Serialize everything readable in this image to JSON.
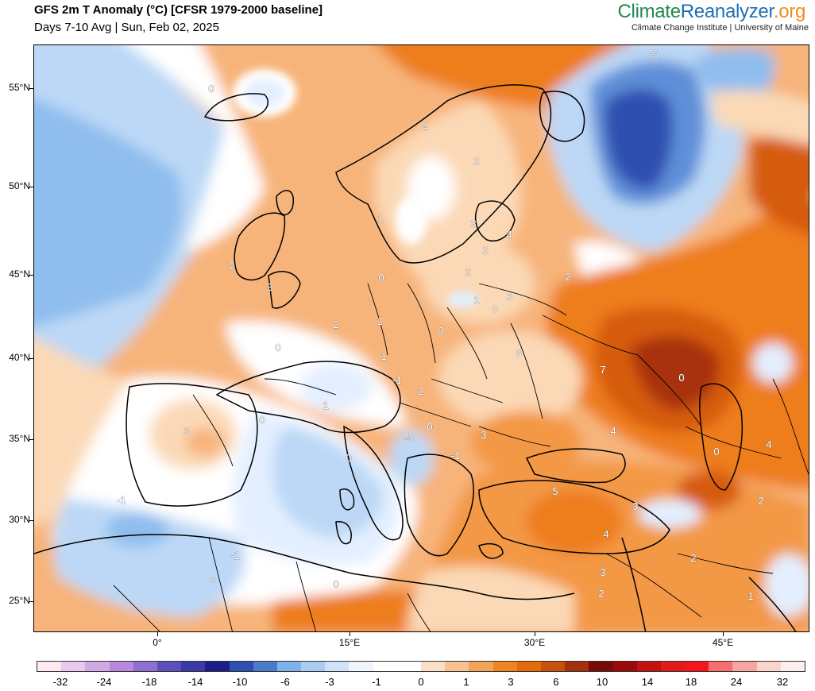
{
  "header": {
    "title": "GFS 2m T Anomaly (°C) [CFSR 1979-2000 baseline]",
    "subtitle": "Days 7-10 Avg | Sun, Feb 02, 2025",
    "brand_part1": "Climate",
    "brand_part2": "Reanalyzer",
    "brand_part3": ".org",
    "brand_sub": "Climate Change Institute | University of Maine"
  },
  "axes": {
    "lat_labels": [
      "55°N",
      "50°N",
      "45°N",
      "40°N",
      "35°N",
      "30°N",
      "25°N"
    ],
    "lon_labels": [
      "0°",
      "15°E",
      "30°E",
      "45°E"
    ]
  },
  "colorbar": {
    "labels": [
      "-32",
      "-24",
      "-18",
      "-14",
      "-10",
      "-6",
      "-3",
      "-1",
      "0",
      "1",
      "3",
      "6",
      "10",
      "14",
      "18",
      "24",
      "32"
    ],
    "colors": [
      "#fde9ef",
      "#e9c9ec",
      "#d3a9e5",
      "#b987dc",
      "#8d6fcf",
      "#5b4fb8",
      "#3a39a6",
      "#1b1d8c",
      "#2f4fb0",
      "#4b79cb",
      "#7fb2ea",
      "#a9cdf2",
      "#cfe2f8",
      "#eef5fd",
      "#ffffff",
      "#ffffff",
      "#fbe0c8",
      "#f7c291",
      "#f3a25a",
      "#ef8420",
      "#e46a0a",
      "#c9500a",
      "#a3300a",
      "#7a0a0a",
      "#9c0b0b",
      "#c41212",
      "#e31a1a",
      "#f5161b",
      "#f76e6e",
      "#f7a5a0",
      "#f9d5cc",
      "#fdeeee"
    ]
  },
  "map": {
    "palette": {
      "warm_light": "#fbd9b6",
      "warm": "#f7b47a",
      "warm_mid": "#f39845",
      "warm_strong": "#ee7d1b",
      "warm_deep": "#d65c0c",
      "warm_max": "#a8320b",
      "cool_light": "#e3efff",
      "cool": "#bcd8f6",
      "cool_mid": "#8fbdee",
      "cool_strong": "#5e8fd8",
      "cool_deep": "#2f4fb0",
      "coast": "#000000"
    },
    "contour_labels": [
      "0",
      "-6",
      "4",
      "2",
      "1",
      "2",
      "3",
      "3",
      "4",
      "2",
      "2",
      "2",
      "0",
      "3",
      "0",
      "1",
      "1",
      "0",
      "2",
      "0",
      "1",
      "6",
      "7",
      "0",
      "-1",
      "2",
      "1",
      "0",
      "-3",
      "0",
      "3",
      "4",
      "3",
      "4",
      "0",
      "-1",
      "0",
      "-1",
      "5",
      "3",
      "2",
      "4",
      "2",
      "-1",
      "3",
      "0",
      "2",
      "0",
      "1"
    ]
  }
}
